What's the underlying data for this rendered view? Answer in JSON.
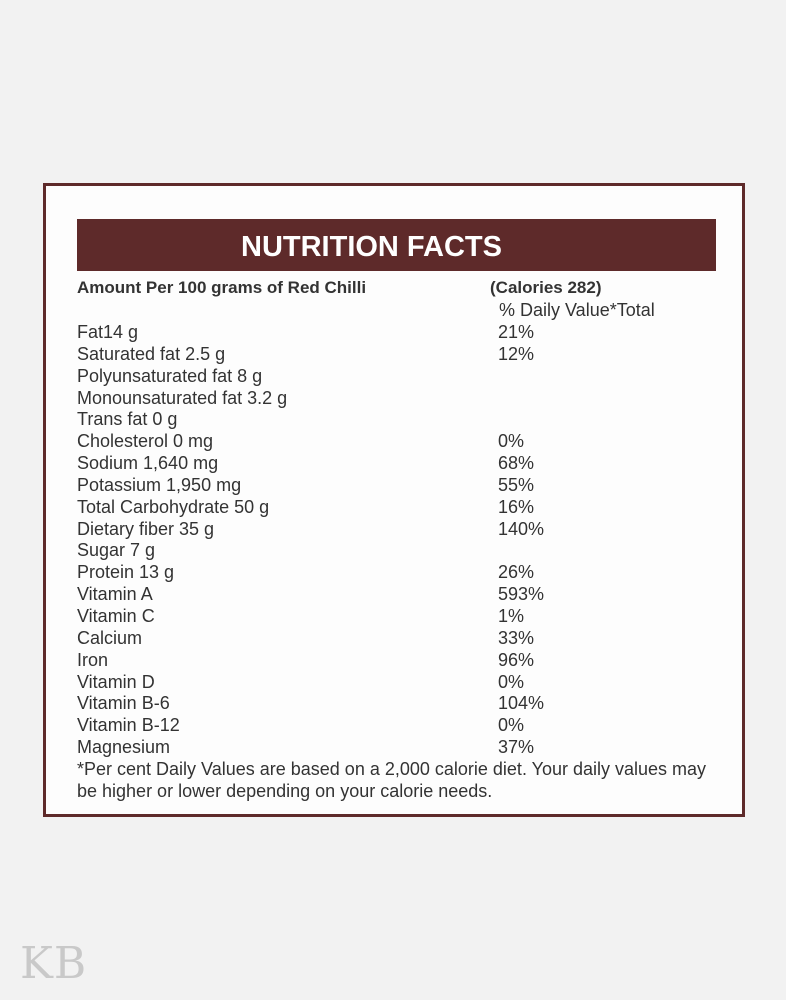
{
  "panel": {
    "title": "NUTRITION FACTS",
    "amount_label": "Amount Per 100 grams of Red Chilli",
    "calories_label": "(Calories 282)",
    "daily_value_header": "% Daily Value*Total"
  },
  "rows": [
    {
      "nutrient": "Fat14 g",
      "dv": "21%"
    },
    {
      "nutrient": "Saturated fat 2.5 g",
      "dv": "12%"
    },
    {
      "nutrient": "Polyunsaturated fat 8 g",
      "dv": ""
    },
    {
      "nutrient": "Monounsaturated fat 3.2 g",
      "dv": ""
    },
    {
      "nutrient": "Trans fat 0 g",
      "dv": ""
    },
    {
      "nutrient": "Cholesterol 0 mg",
      "dv": "0%"
    },
    {
      "nutrient": "Sodium 1,640 mg",
      "dv": "68%"
    },
    {
      "nutrient": "Potassium 1,950 mg",
      "dv": "55%"
    },
    {
      "nutrient": "Total Carbohydrate 50 g",
      "dv": "16%"
    },
    {
      "nutrient": "Dietary fiber 35 g",
      "dv": "140%"
    },
    {
      "nutrient": "Sugar 7 g",
      "dv": ""
    },
    {
      "nutrient": "Protein 13 g",
      "dv": "26%"
    },
    {
      "nutrient": "Vitamin A",
      "dv": "593%"
    },
    {
      "nutrient": "Vitamin C",
      "dv": "1%"
    },
    {
      "nutrient": "Calcium",
      "dv": "33%"
    },
    {
      "nutrient": "Iron",
      "dv": "96%"
    },
    {
      "nutrient": "Vitamin D",
      "dv": "0%"
    },
    {
      "nutrient": "Vitamin B-6",
      "dv": "104%"
    },
    {
      "nutrient": "Vitamin B-12",
      "dv": "0%"
    },
    {
      "nutrient": "Magnesium",
      "dv": "37%"
    }
  ],
  "footnote": "*Per cent Daily Values are based on a 2,000 calorie diet. Your daily values may be higher or lower depending on your calorie needs.",
  "watermark": "KB",
  "colors": {
    "accent": "#5e2a2a",
    "text": "#333333",
    "background": "#f2f2f2",
    "watermark": "#c9c9c9"
  }
}
